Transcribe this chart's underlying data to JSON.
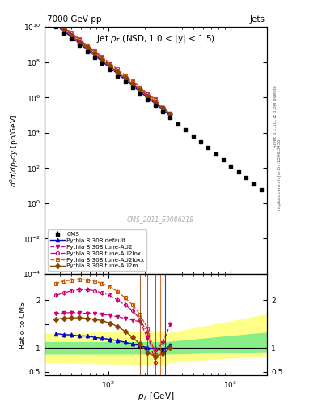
{
  "title_top": "7000 GeV pp",
  "title_right": "Jets",
  "plot_title": "Jet $p_T$ (NSD, 1.0 < |y| < 1.5)",
  "ylabel_main": "$d^2\\sigma/dp_Tdy$ [pb/GeV]",
  "ylabel_ratio": "Ratio to CMS",
  "xlabel": "$p_T$ [GeV]",
  "right_label1": "Rivet 3.1.10, ≥ 3.3M events",
  "right_label2": "mcplots.cern.ch [arXiv:1306.3436]",
  "watermark": "CMS_2011_S9086218",
  "cms_color": "#000000",
  "default_color": "#0000cc",
  "au2_color": "#cc0077",
  "au2lox_color": "#cc0077",
  "au2loxx_color": "#cc5500",
  "au2m_color": "#884400",
  "green_band_lo": 0.9,
  "green_band_hi": 1.1,
  "yellow_band_lo": 0.7,
  "yellow_band_hi": 1.3,
  "xlim": [
    30,
    2000
  ],
  "ylim_main": [
    0.0001,
    10000000000.0
  ],
  "ylim_ratio": [
    0.42,
    2.55
  ]
}
